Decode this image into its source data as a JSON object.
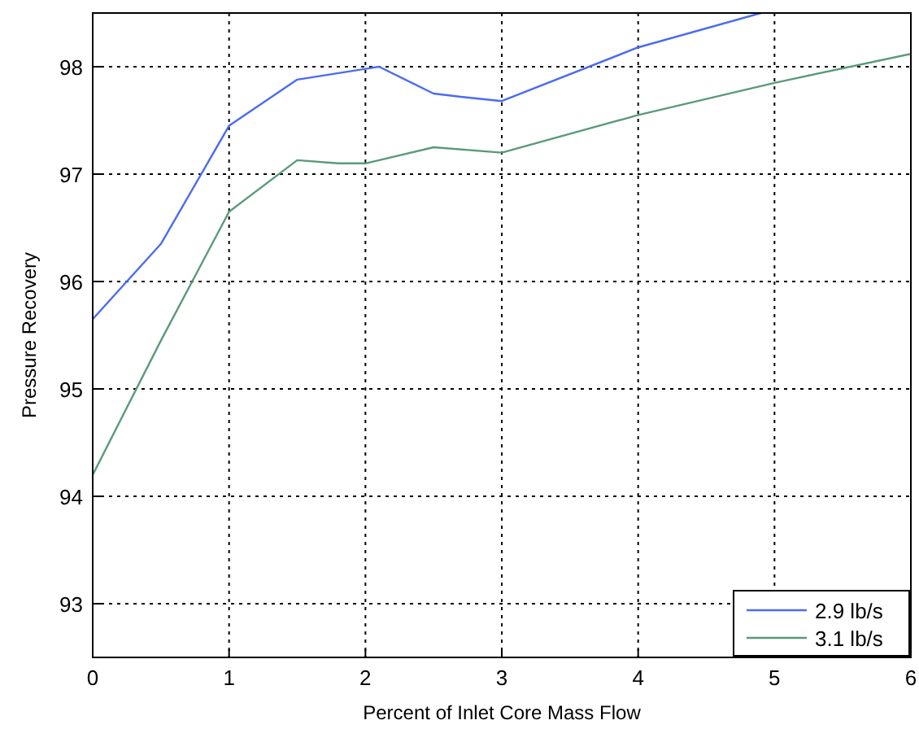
{
  "chart_data": {
    "type": "line",
    "xlabel": "Percent of Inlet Core Mass Flow",
    "ylabel": "Pressure Recovery",
    "xlim": [
      0,
      6
    ],
    "ylim": [
      92.5,
      98.5
    ],
    "xticks": [
      0,
      1,
      2,
      3,
      4,
      5,
      6
    ],
    "yticks": [
      93,
      94,
      95,
      96,
      97,
      98
    ],
    "grid": true,
    "legend": "bottom right",
    "line_style": "solid",
    "series": [
      {
        "name": "2.9 lb/s",
        "color": "#4a6cf0",
        "x": [
          0,
          0.5,
          1,
          1.5,
          2,
          2.1,
          2.5,
          2.7,
          3,
          4,
          4.9
        ],
        "values": [
          95.65,
          96.35,
          97.45,
          97.88,
          97.98,
          98.0,
          97.75,
          97.72,
          97.68,
          98.18,
          98.5
        ]
      },
      {
        "name": "3.1 lb/s",
        "color": "#5a9a7a",
        "x": [
          0,
          0.5,
          1,
          1.5,
          1.8,
          2,
          2.5,
          3,
          4,
          5,
          6
        ],
        "values": [
          94.2,
          95.45,
          96.65,
          97.13,
          97.1,
          97.1,
          97.25,
          97.2,
          97.55,
          97.85,
          98.12
        ]
      }
    ]
  }
}
